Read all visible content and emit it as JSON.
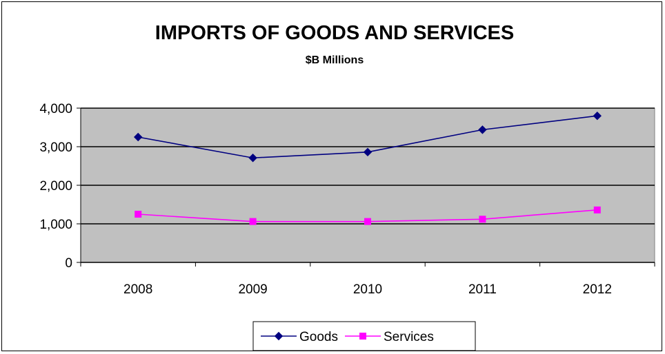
{
  "chart_data": {
    "type": "line",
    "title": "IMPORTS OF GOODS AND SERVICES",
    "subtitle": "$B Millions",
    "categories": [
      "2008",
      "2009",
      "2010",
      "2011",
      "2012"
    ],
    "series": [
      {
        "name": "Goods",
        "values": [
          3250,
          2710,
          2860,
          3440,
          3800
        ],
        "color": "#000080",
        "marker": "diamond"
      },
      {
        "name": "Services",
        "values": [
          1250,
          1060,
          1060,
          1120,
          1360
        ],
        "color": "#FF00FF",
        "marker": "square"
      }
    ],
    "ylim": [
      0,
      4000
    ],
    "yticks": [
      "0",
      "1,000",
      "2,000",
      "3,000",
      "4,000"
    ],
    "ytick_values": [
      0,
      1000,
      2000,
      3000,
      4000
    ],
    "plot_background": "#C0C0C0",
    "grid": true,
    "legend_position": "bottom"
  }
}
